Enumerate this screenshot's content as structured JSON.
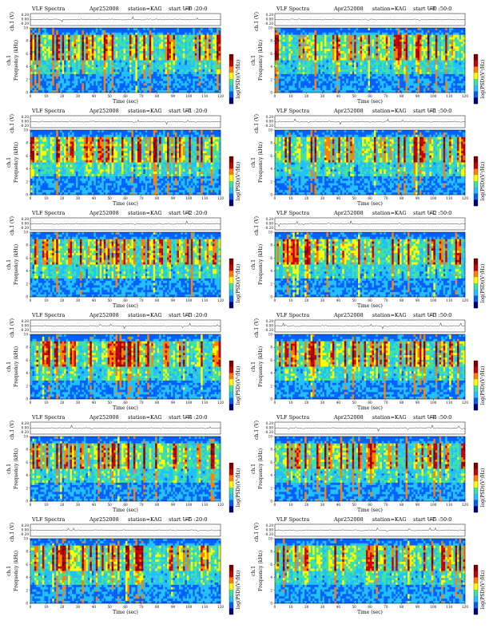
{
  "labels": {
    "title": "VLF Spectra",
    "date": "Apr252008",
    "station": "station=KAG",
    "ut_prefix": "start  UT",
    "x_label": "Time (sec)",
    "ch_label": "ch.1 (V)",
    "ch1_label": "ch.1",
    "freq_label": "Frequency (kHz)",
    "cb_label": "log(PSD)(V²/Hz)"
  },
  "panels": [
    {
      "time": "=0 :20:0"
    },
    {
      "time": "=0 :50:0"
    },
    {
      "time": "=1 :20:0"
    },
    {
      "time": "=1 :50:0"
    },
    {
      "time": "=2 :20:0"
    },
    {
      "time": "=2 :50:0"
    },
    {
      "time": "=3 :20:0"
    },
    {
      "time": "=3 :50:0"
    },
    {
      "time": "=4 :20:0"
    },
    {
      "time": "=4 :50:0"
    },
    {
      "time": "=5 :20:0"
    },
    {
      "time": "=5 :50:0"
    }
  ],
  "chart_data": {
    "type": "heatmap",
    "layout": "6 rows x 2 columns of spectrograms",
    "x_axis": {
      "label": "Time (sec)",
      "range": [
        0,
        120
      ],
      "ticks": [
        0,
        10,
        20,
        30,
        40,
        50,
        60,
        70,
        80,
        90,
        100,
        110,
        120
      ]
    },
    "y_axis": {
      "label": "Frequency (kHz)",
      "range": [
        0,
        10
      ],
      "ticks": [
        0,
        2,
        4,
        6,
        8,
        10
      ]
    },
    "waveform_axis": {
      "label": "ch.1 (V)",
      "ticks": [
        "0.20",
        "0.00",
        "-0.20"
      ]
    },
    "colorbar": {
      "label": "log(PSD)(V²/Hz)",
      "colors": [
        "#000080",
        "#0060ff",
        "#20c0ff",
        "#40e0a0",
        "#ffff00",
        "#ff8000",
        "#cc0000",
        "#800000"
      ]
    },
    "dominant_band_khz": [
      5,
      9
    ]
  }
}
